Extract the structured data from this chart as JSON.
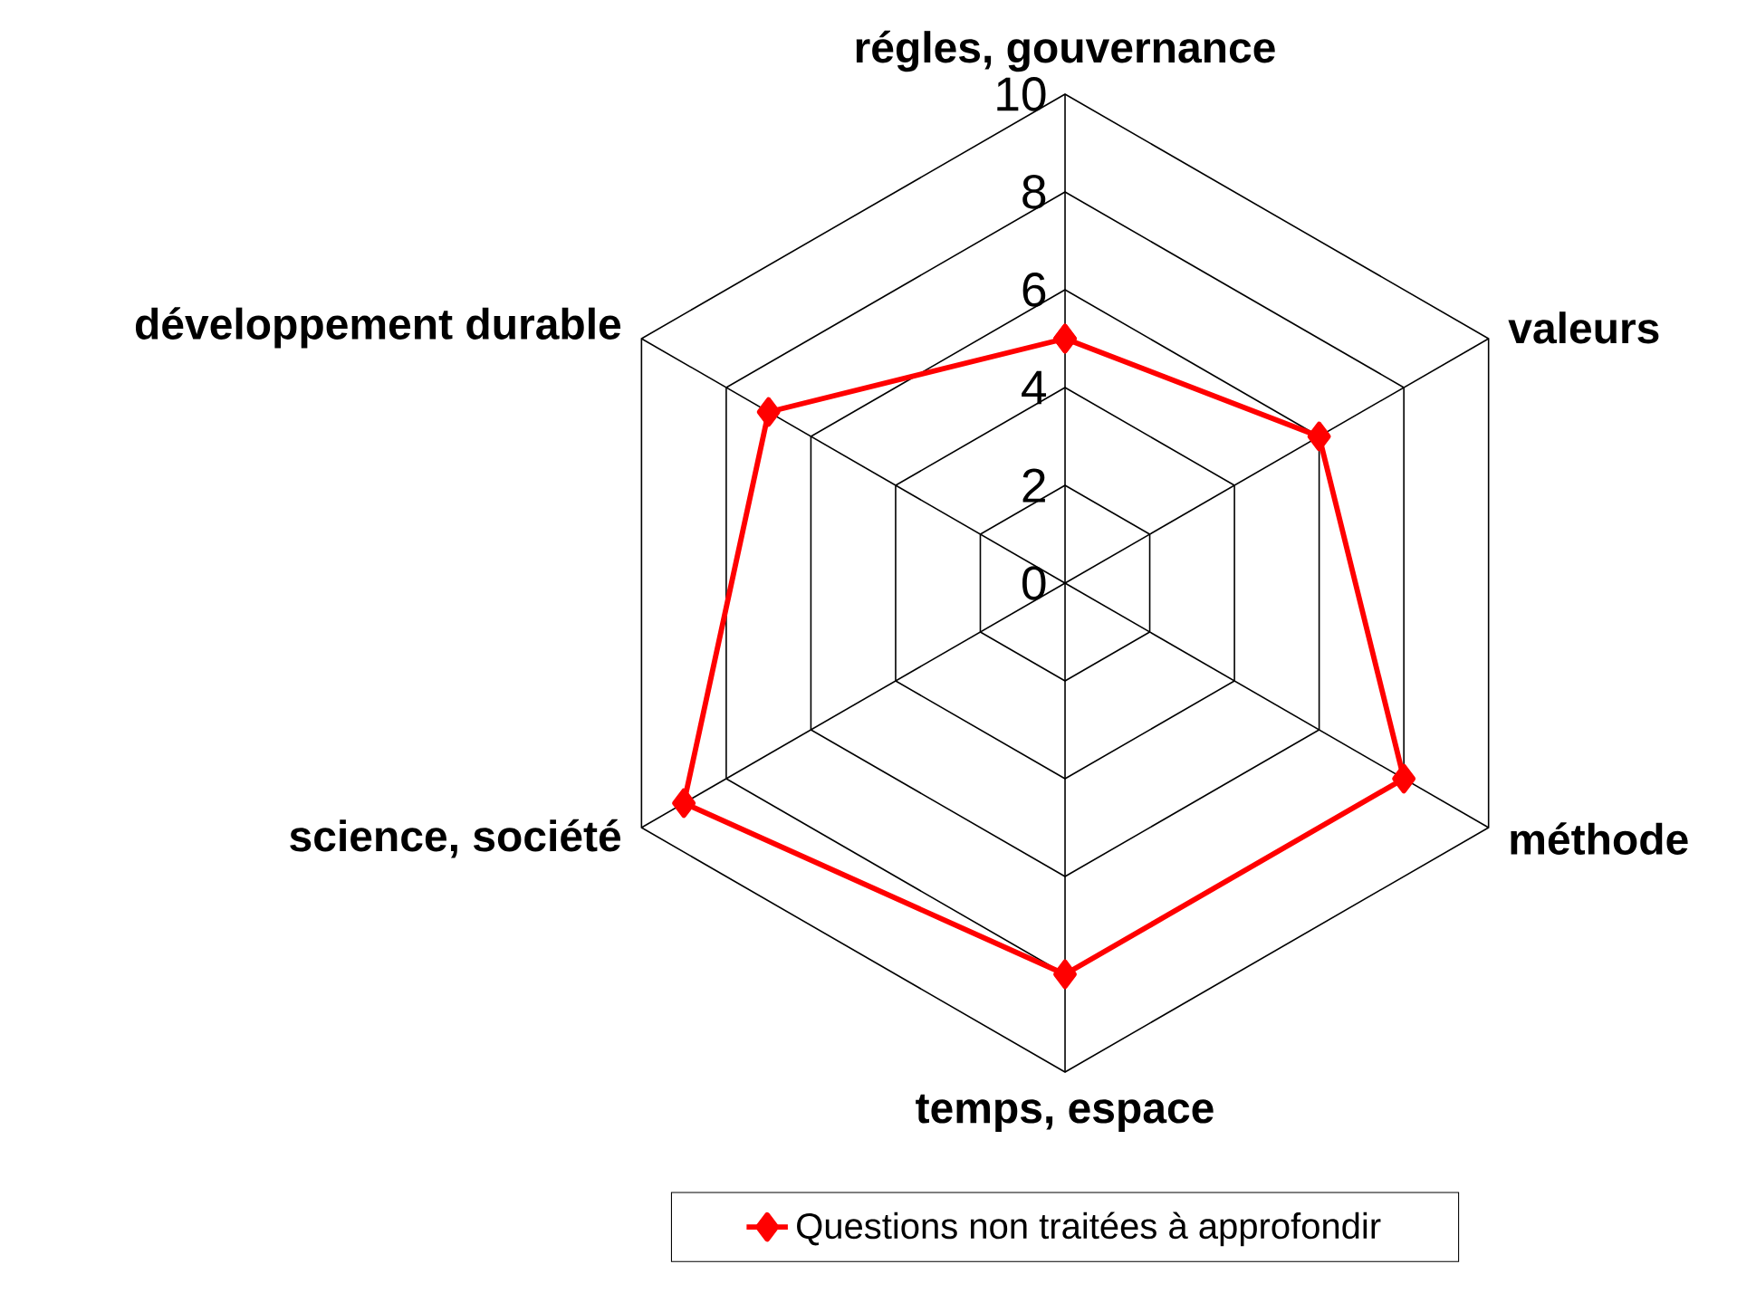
{
  "chart_data": {
    "type": "radar",
    "categories": [
      "régles, gouvernance",
      "valeurs",
      "méthode",
      "temps, espace",
      "science, société",
      "développement durable"
    ],
    "series": [
      {
        "name": "Questions non traitées à approfondir",
        "color": "#ff0000",
        "values": [
          5,
          6,
          8,
          8,
          9,
          7
        ]
      }
    ],
    "ylim": [
      0,
      10
    ],
    "yticks": [
      0,
      2,
      4,
      6,
      8,
      10
    ],
    "grid": true,
    "legend": "bottom",
    "marker": "diamond",
    "line_style": "solid"
  }
}
